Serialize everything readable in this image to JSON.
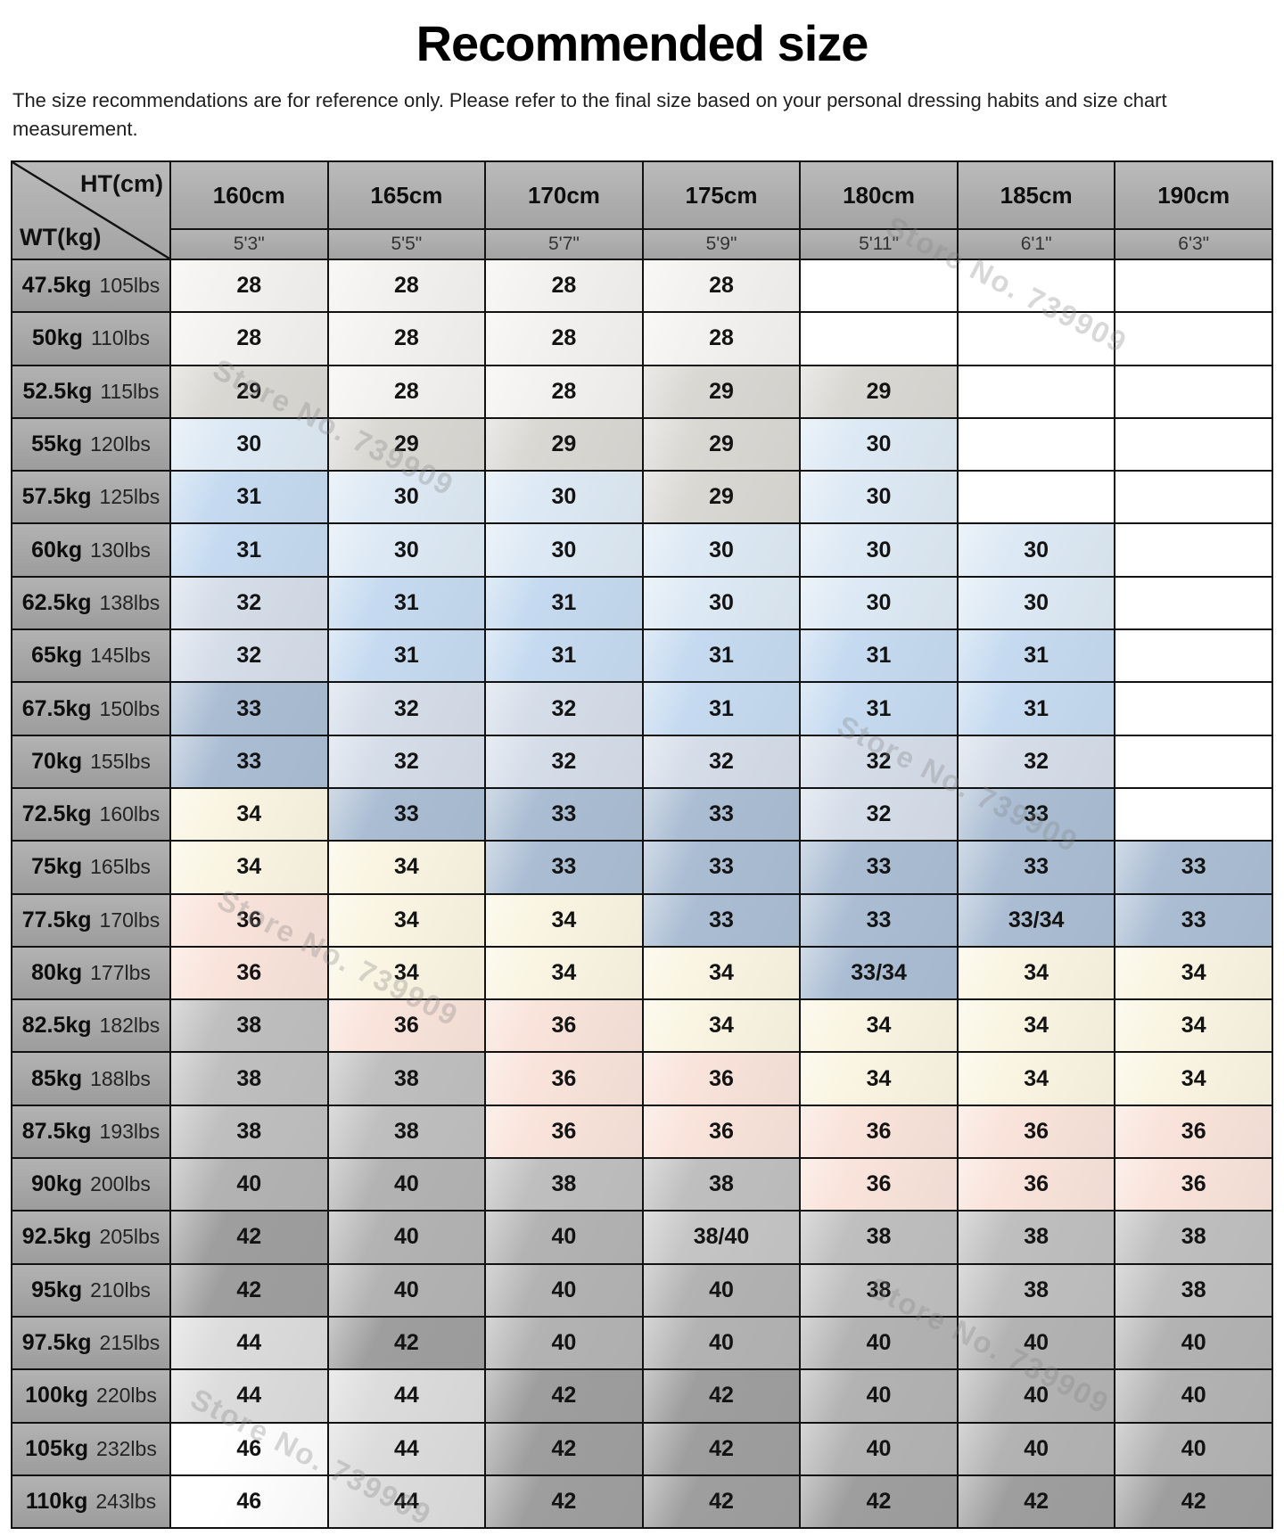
{
  "title": "Recommended size",
  "subtitle_lines": [
    "The size recommendations are for reference only. Please refer to the final size based on your personal dressing habits and size chart",
    "measurement."
  ],
  "watermark_text": "Store No. 739909",
  "colors": {
    "header_bg": "#adadad",
    "label_bg": "#a6a6a6",
    "border": "#121212"
  },
  "value_colors": {
    "": "#ffffff",
    "28": "#f3f2f0",
    "29": "#d9d8d3",
    "30": "#dde9f4",
    "31": "#c5daf0",
    "32": "#d5dde9",
    "33": "#aabdd3",
    "33/34": "#aabdd3",
    "34": "#faf5e2",
    "36": "#f9e3da",
    "38": "#bfbfbf",
    "38/40": "#c5c5c5",
    "40": "#b3b3b3",
    "42": "#9e9e9e",
    "44": "#dcdcdc",
    "46": "#ffffff"
  },
  "chart_data": {
    "type": "table",
    "title": "Recommended size",
    "corner": {
      "top": "HT(cm)",
      "bottom": "WT(kg)"
    },
    "col_headers_cm": [
      "160cm",
      "165cm",
      "170cm",
      "175cm",
      "180cm",
      "185cm",
      "190cm"
    ],
    "col_headers_ft": [
      "5'3\"",
      "5'5\"",
      "5'7\"",
      "5'9\"",
      "5'11\"",
      "6'1\"",
      "6'3\""
    ],
    "rows": [
      {
        "kg": "47.5kg",
        "lbs": "105lbs",
        "sizes": [
          "28",
          "28",
          "28",
          "28",
          "",
          "",
          ""
        ]
      },
      {
        "kg": "50kg",
        "lbs": "110lbs",
        "sizes": [
          "28",
          "28",
          "28",
          "28",
          "",
          "",
          ""
        ]
      },
      {
        "kg": "52.5kg",
        "lbs": "115lbs",
        "sizes": [
          "29",
          "28",
          "28",
          "29",
          "29",
          "",
          ""
        ]
      },
      {
        "kg": "55kg",
        "lbs": "120lbs",
        "sizes": [
          "30",
          "29",
          "29",
          "29",
          "30",
          "",
          ""
        ]
      },
      {
        "kg": "57.5kg",
        "lbs": "125lbs",
        "sizes": [
          "31",
          "30",
          "30",
          "29",
          "30",
          "",
          ""
        ]
      },
      {
        "kg": "60kg",
        "lbs": "130lbs",
        "sizes": [
          "31",
          "30",
          "30",
          "30",
          "30",
          "30",
          ""
        ]
      },
      {
        "kg": "62.5kg",
        "lbs": "138lbs",
        "sizes": [
          "32",
          "31",
          "31",
          "30",
          "30",
          "30",
          ""
        ]
      },
      {
        "kg": "65kg",
        "lbs": "145lbs",
        "sizes": [
          "32",
          "31",
          "31",
          "31",
          "31",
          "31",
          ""
        ]
      },
      {
        "kg": "67.5kg",
        "lbs": "150lbs",
        "sizes": [
          "33",
          "32",
          "32",
          "31",
          "31",
          "31",
          ""
        ]
      },
      {
        "kg": "70kg",
        "lbs": "155lbs",
        "sizes": [
          "33",
          "32",
          "32",
          "32",
          "32",
          "32",
          ""
        ]
      },
      {
        "kg": "72.5kg",
        "lbs": "160lbs",
        "sizes": [
          "34",
          "33",
          "33",
          "33",
          "32",
          "33",
          ""
        ]
      },
      {
        "kg": "75kg",
        "lbs": "165lbs",
        "sizes": [
          "34",
          "34",
          "33",
          "33",
          "33",
          "33",
          "33"
        ]
      },
      {
        "kg": "77.5kg",
        "lbs": "170lbs",
        "sizes": [
          "36",
          "34",
          "34",
          "33",
          "33",
          "33/34",
          "33"
        ]
      },
      {
        "kg": "80kg",
        "lbs": "177lbs",
        "sizes": [
          "36",
          "34",
          "34",
          "34",
          "33/34",
          "34",
          "34"
        ]
      },
      {
        "kg": "82.5kg",
        "lbs": "182lbs",
        "sizes": [
          "38",
          "36",
          "36",
          "34",
          "34",
          "34",
          "34"
        ]
      },
      {
        "kg": "85kg",
        "lbs": "188lbs",
        "sizes": [
          "38",
          "38",
          "36",
          "36",
          "34",
          "34",
          "34"
        ]
      },
      {
        "kg": "87.5kg",
        "lbs": "193lbs",
        "sizes": [
          "38",
          "38",
          "36",
          "36",
          "36",
          "36",
          "36"
        ]
      },
      {
        "kg": "90kg",
        "lbs": "200lbs",
        "sizes": [
          "40",
          "40",
          "38",
          "38",
          "36",
          "36",
          "36"
        ]
      },
      {
        "kg": "92.5kg",
        "lbs": "205lbs",
        "sizes": [
          "42",
          "40",
          "40",
          "38/40",
          "38",
          "38",
          "38"
        ]
      },
      {
        "kg": "95kg",
        "lbs": "210lbs",
        "sizes": [
          "42",
          "40",
          "40",
          "40",
          "38",
          "38",
          "38"
        ]
      },
      {
        "kg": "97.5kg",
        "lbs": "215lbs",
        "sizes": [
          "44",
          "42",
          "40",
          "40",
          "40",
          "40",
          "40"
        ]
      },
      {
        "kg": "100kg",
        "lbs": "220lbs",
        "sizes": [
          "44",
          "44",
          "42",
          "42",
          "40",
          "40",
          "40"
        ]
      },
      {
        "kg": "105kg",
        "lbs": "232lbs",
        "sizes": [
          "46",
          "44",
          "42",
          "42",
          "40",
          "40",
          "40"
        ]
      },
      {
        "kg": "110kg",
        "lbs": "243lbs",
        "sizes": [
          "46",
          "44",
          "42",
          "42",
          "42",
          "42",
          "42"
        ]
      }
    ]
  }
}
